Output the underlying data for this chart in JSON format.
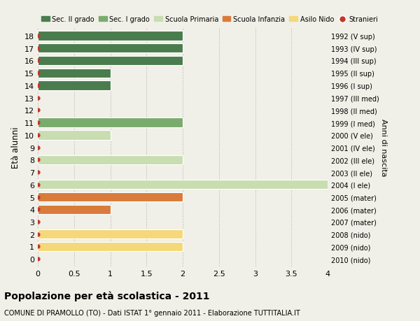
{
  "ages": [
    18,
    17,
    16,
    15,
    14,
    13,
    12,
    11,
    10,
    9,
    8,
    7,
    6,
    5,
    4,
    3,
    2,
    1,
    0
  ],
  "right_labels": [
    "1992 (V sup)",
    "1993 (IV sup)",
    "1994 (III sup)",
    "1995 (II sup)",
    "1996 (I sup)",
    "1997 (III med)",
    "1998 (II med)",
    "1999 (I med)",
    "2000 (V ele)",
    "2001 (IV ele)",
    "2002 (III ele)",
    "2003 (II ele)",
    "2004 (I ele)",
    "2005 (mater)",
    "2006 (mater)",
    "2007 (mater)",
    "2008 (nido)",
    "2009 (nido)",
    "2010 (nido)"
  ],
  "bar_values": [
    2.0,
    2.0,
    2.0,
    1.0,
    1.0,
    0.0,
    0.0,
    2.0,
    1.0,
    0.0,
    2.0,
    0.0,
    4.0,
    2.0,
    1.0,
    0.0,
    2.0,
    2.0,
    0.0
  ],
  "age_colors": {
    "18": "#4a7c4e",
    "17": "#4a7c4e",
    "16": "#4a7c4e",
    "15": "#4a7c4e",
    "14": "#4a7c4e",
    "13": "#4a7c4e",
    "12": "#4a7c4e",
    "11": "#7aab6e",
    "10": "#c8ddb0",
    "9": "#c8ddb0",
    "8": "#c8ddb0",
    "7": "#c8ddb0",
    "6": "#c8ddb0",
    "5": "#d97b3a",
    "4": "#d97b3a",
    "3": "#d97b3a",
    "2": "#f5d87a",
    "1": "#f5d87a",
    "0": "#f5d87a"
  },
  "legend_labels": [
    "Sec. II grado",
    "Sec. I grado",
    "Scuola Primaria",
    "Scuola Infanzia",
    "Asilo Nido",
    "Stranieri"
  ],
  "legend_colors": [
    "#4a7c4e",
    "#7aab6e",
    "#c8ddb0",
    "#d97b3a",
    "#f5d87a",
    "#c0392b"
  ],
  "ylabel": "Età alunni",
  "right_axis_label": "Anni di nascita",
  "title": "Popolazione per età scolastica - 2011",
  "subtitle": "COMUNE DI PRAMOLLO (TO) - Dati ISTAT 1° gennaio 2011 - Elaborazione TUTTITALIA.IT",
  "xlim": [
    0,
    4.0
  ],
  "xticks": [
    0,
    0.5,
    1.0,
    1.5,
    2.0,
    2.5,
    3.0,
    3.5,
    4.0
  ],
  "bg_color": "#f0f0e8",
  "bar_height": 0.75,
  "red_dot_color": "#c0392b"
}
